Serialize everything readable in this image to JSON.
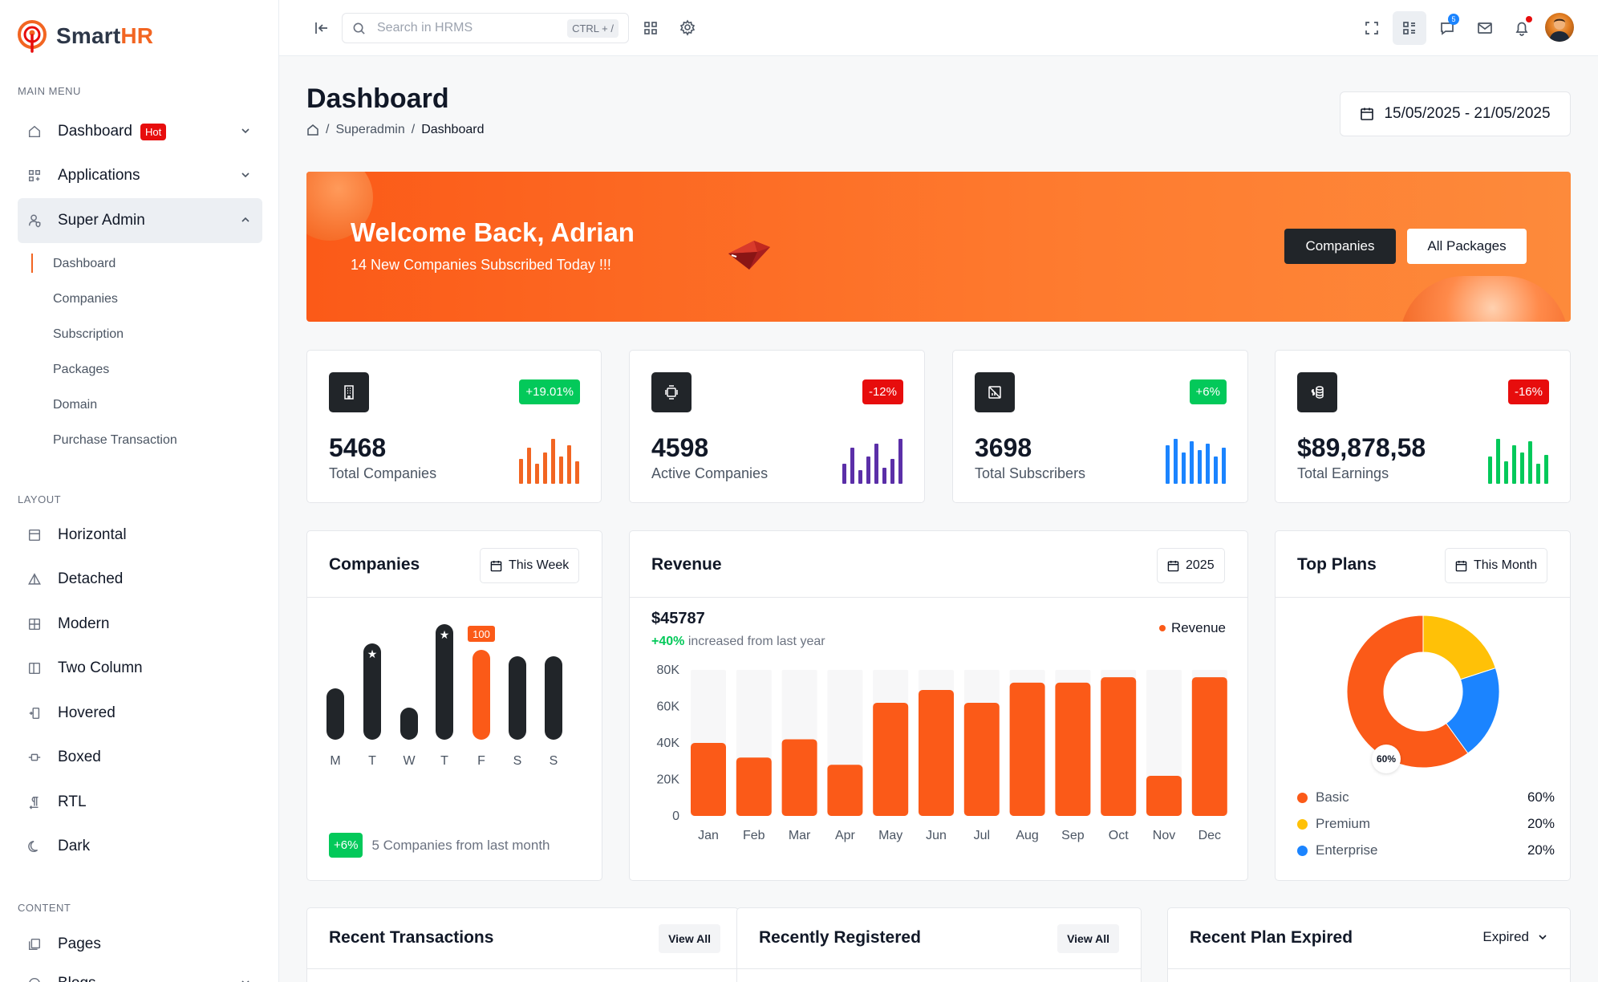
{
  "brand": {
    "name_main": "Smart",
    "name_accent": "HR"
  },
  "sidebar": {
    "main_menu_title": "MAIN MENU",
    "main_items": [
      {
        "label": "Dashboard",
        "badge": "Hot"
      },
      {
        "label": "Applications"
      },
      {
        "label": "Super Admin"
      }
    ],
    "sub_items": [
      "Dashboard",
      "Companies",
      "Subscription",
      "Packages",
      "Domain",
      "Purchase Transaction"
    ],
    "layout_title": "LAYOUT",
    "layout_items": [
      "Horizontal",
      "Detached",
      "Modern",
      "Two Column",
      "Hovered",
      "Boxed",
      "RTL",
      "Dark"
    ],
    "content_title": "CONTENT",
    "content_items": [
      "Pages",
      "Blogs"
    ]
  },
  "topbar": {
    "search_placeholder": "Search in HRMS",
    "search_shortcut": "CTRL + /",
    "chat_badge": "5"
  },
  "page": {
    "title": "Dashboard",
    "breadcrumb": [
      "Superadmin",
      "Dashboard"
    ],
    "date_range": "15/05/2025 - 21/05/2025"
  },
  "banner": {
    "title": "Welcome Back, Adrian",
    "subtitle": "14 New Companies Subscribed Today !!!",
    "btn_companies": "Companies",
    "btn_packages": "All Packages"
  },
  "stats": [
    {
      "value": "5468",
      "label": "Total Companies",
      "change": "+19.01%",
      "change_color": "#03c95a",
      "bar_color": "#f26522",
      "icon": "building-icon"
    },
    {
      "value": "4598",
      "label": "Active Companies",
      "change": "-12%",
      "change_color": "#e70d0d",
      "bar_color": "#5b2fa8",
      "icon": "carousel-icon"
    },
    {
      "value": "3698",
      "label": "Total Subscribers",
      "change": "+6%",
      "change_color": "#03c95a",
      "bar_color": "#1b84ff",
      "icon": "chart-off-icon"
    },
    {
      "value": "$89,878,58",
      "label": "Total Earnings",
      "change": "-16%",
      "change_color": "#e70d0d",
      "bar_color": "#03c95a",
      "icon": "coins-icon"
    }
  ],
  "companies_card": {
    "title": "Companies",
    "filter": "This Week",
    "chart_data": {
      "type": "bar",
      "categories": [
        "M",
        "T",
        "W",
        "T",
        "F",
        "S",
        "S"
      ],
      "values": [
        40,
        75,
        25,
        90,
        70,
        65,
        65
      ],
      "highlight_label": "100",
      "ylim": [
        0,
        100
      ]
    },
    "footer_badge": "+6%",
    "footer_count": "5 Companies",
    "footer_text": "from last month"
  },
  "revenue_card": {
    "title": "Revenue",
    "filter": "2025",
    "total": "$45787",
    "change": "+40%",
    "change_text": "increased from last year",
    "legend": "Revenue",
    "chart_data": {
      "type": "bar",
      "categories": [
        "Jan",
        "Feb",
        "Mar",
        "Apr",
        "May",
        "Jun",
        "Jul",
        "Aug",
        "Sep",
        "Oct",
        "Nov",
        "Dec"
      ],
      "values": [
        40000,
        32000,
        42000,
        28000,
        62000,
        69000,
        62000,
        73000,
        73000,
        76000,
        22000,
        76000
      ],
      "yticks": [
        "0",
        "20K",
        "40K",
        "60K",
        "80K"
      ],
      "ylim": [
        0,
        80000
      ],
      "color": "#fb5a18"
    }
  },
  "top_plans_card": {
    "title": "Top Plans",
    "filter": "This Month",
    "center_label": "60%",
    "chart_data": {
      "type": "pie",
      "labels": [
        "Basic",
        "Premium",
        "Enterprise"
      ],
      "values": [
        60,
        20,
        20
      ],
      "display": [
        "60%",
        "20%",
        "20%"
      ],
      "colors": [
        "#fb5a18",
        "#ffc107",
        "#1b84ff"
      ]
    }
  },
  "bottom_cards": {
    "recent_transactions": {
      "title": "Recent Transactions",
      "action": "View All"
    },
    "recently_registered": {
      "title": "Recently Registered",
      "action": "View All"
    },
    "recent_plan_expired": {
      "title": "Recent Plan Expired",
      "action": "Expired"
    }
  }
}
